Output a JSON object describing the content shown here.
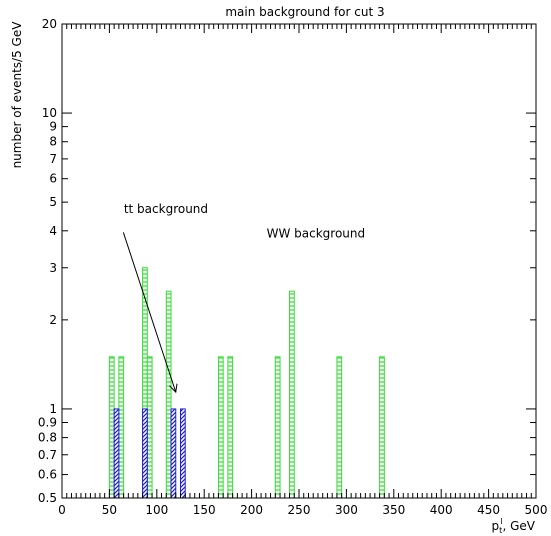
{
  "chart_data": {
    "type": "bar",
    "title": "main background for cut 3",
    "ylabel": "number of events/5 GeV",
    "xlabel_main": "p",
    "xlabel_sub": "t",
    "xlabel_sup": "l",
    "xlabel_unit": ", GeV",
    "xlim": [
      0,
      500
    ],
    "ylim": [
      0.5,
      20
    ],
    "yscale": "log",
    "bin_width": 5,
    "x_tick_labels": [
      "0",
      "50",
      "100",
      "150",
      "200",
      "250",
      "300",
      "350",
      "400",
      "450",
      "500"
    ],
    "y_tick_values": [
      0.5,
      0.6,
      0.7,
      0.8,
      0.9,
      1,
      2,
      3,
      4,
      5,
      6,
      7,
      8,
      9,
      10,
      20
    ],
    "y_tick_labels": [
      "0.5",
      "0.6",
      "0.7",
      "0.8",
      "0.9",
      "1",
      "2",
      "3",
      "4",
      "5",
      "6",
      "7",
      "8",
      "9",
      "10",
      "20"
    ],
    "series": [
      {
        "name": "WW background",
        "style": "horizontal-hatch",
        "color": "#33dd33",
        "bins": [
          {
            "x0": 50,
            "x1": 55,
            "y": 1.5
          },
          {
            "x0": 60,
            "x1": 65,
            "y": 1.5
          },
          {
            "x0": 85,
            "x1": 90,
            "y": 3
          },
          {
            "x0": 90,
            "x1": 95,
            "y": 1.5
          },
          {
            "x0": 110,
            "x1": 115,
            "y": 2.5
          },
          {
            "x0": 165,
            "x1": 170,
            "y": 1.5
          },
          {
            "x0": 175,
            "x1": 180,
            "y": 1.5
          },
          {
            "x0": 225,
            "x1": 230,
            "y": 1.5
          },
          {
            "x0": 240,
            "x1": 245,
            "y": 2.5
          },
          {
            "x0": 290,
            "x1": 295,
            "y": 1.5
          },
          {
            "x0": 335,
            "x1": 340,
            "y": 1.5
          }
        ]
      },
      {
        "name": "tt background",
        "style": "diagonal-hatch",
        "color": "#2222cc",
        "bins": [
          {
            "x0": 55,
            "x1": 60,
            "y": 1
          },
          {
            "x0": 85,
            "x1": 90,
            "y": 1
          },
          {
            "x0": 115,
            "x1": 120,
            "y": 1
          },
          {
            "x0": 125,
            "x1": 130,
            "y": 1
          }
        ]
      }
    ],
    "annotations": [
      {
        "text": "tt background",
        "x": 80,
        "y": 4.6
      },
      {
        "text": "WW background",
        "x": 200,
        "y": 3.8
      }
    ],
    "arrow": {
      "from_x": 70,
      "from_y": 3.95,
      "to_x": 120,
      "to_y": 1.14
    }
  }
}
